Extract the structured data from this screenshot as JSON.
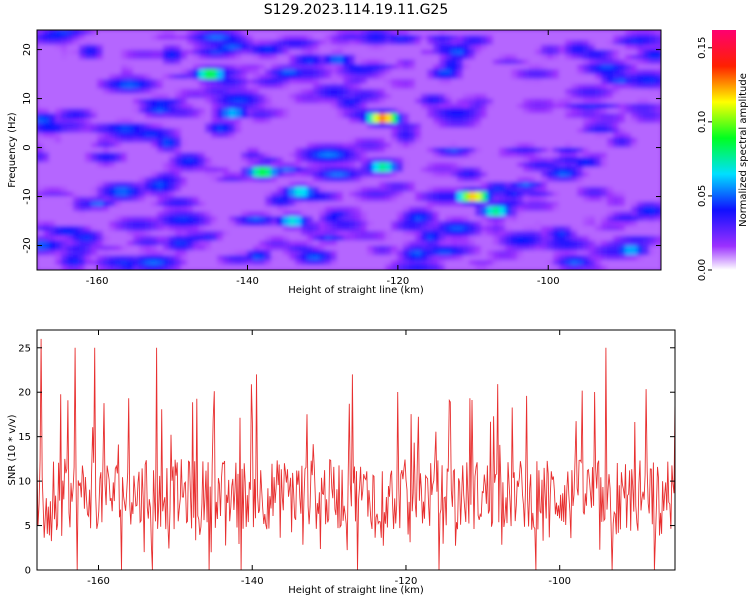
{
  "title": "S129.2023.114.19.11.G25",
  "chart_data": [
    {
      "type": "heatmap",
      "xlabel": "Height of straight line (km)",
      "ylabel": "Frequency (Hz)",
      "xlim": [
        -168,
        -85
      ],
      "ylim": [
        -25,
        24
      ],
      "x_ticks": [
        -160,
        -140,
        -120,
        -100
      ],
      "y_ticks": [
        -20,
        -10,
        0,
        10,
        20
      ],
      "colorbar": {
        "label": "Normalized spectral amplitude",
        "range": [
          0.0,
          0.162
        ],
        "ticks": [
          0.0,
          0.05,
          0.1,
          0.15
        ],
        "tick_labels": [
          "0.00",
          "0.05",
          "0.10",
          "0.15"
        ],
        "colormap": "rainbow white-purple-blue-cyan-green-yellow-red-magenta"
      },
      "hotspots": [
        {
          "x": -122,
          "y": 6,
          "value": 0.15
        },
        {
          "x": -110,
          "y": -10,
          "value": 0.14
        },
        {
          "x": -145,
          "y": 15,
          "value": 0.1
        },
        {
          "x": -138,
          "y": -5,
          "value": 0.1
        },
        {
          "x": -122,
          "y": -4,
          "value": 0.09
        },
        {
          "x": -107,
          "y": -13,
          "value": 0.09
        },
        {
          "x": -134,
          "y": -15,
          "value": 0.08
        },
        {
          "x": -133,
          "y": -9,
          "value": 0.08
        },
        {
          "x": -142,
          "y": 7,
          "value": 0.07
        },
        {
          "x": -89,
          "y": -21,
          "value": 0.07
        },
        {
          "x": -128,
          "y": 18,
          "value": 0.06
        },
        {
          "x": -95,
          "y": -3,
          "value": 0.05
        }
      ]
    },
    {
      "type": "line",
      "xlabel": "Height of straight line (km)",
      "ylabel": "SNR (10 * v/v)",
      "xlim": [
        -168,
        -85
      ],
      "ylim": [
        0,
        27
      ],
      "x_ticks": [
        -160,
        -140,
        -120,
        -100
      ],
      "y_ticks": [
        0,
        5,
        10,
        15,
        20,
        25
      ],
      "series": [
        {
          "color": "#e83030",
          "description": "noisy trace, ~600 samples, mostly 5-13, spikes to 25",
          "peaks": [
            {
              "x": -167.5,
              "y": 26
            },
            {
              "x": -163,
              "y": 25
            },
            {
              "x": -160.5,
              "y": 25
            },
            {
              "x": -152.5,
              "y": 25
            },
            {
              "x": -139.5,
              "y": 22
            },
            {
              "x": -127,
              "y": 22
            },
            {
              "x": -94,
              "y": 25
            },
            {
              "x": -84.5,
              "y": 19
            }
          ]
        }
      ]
    }
  ]
}
